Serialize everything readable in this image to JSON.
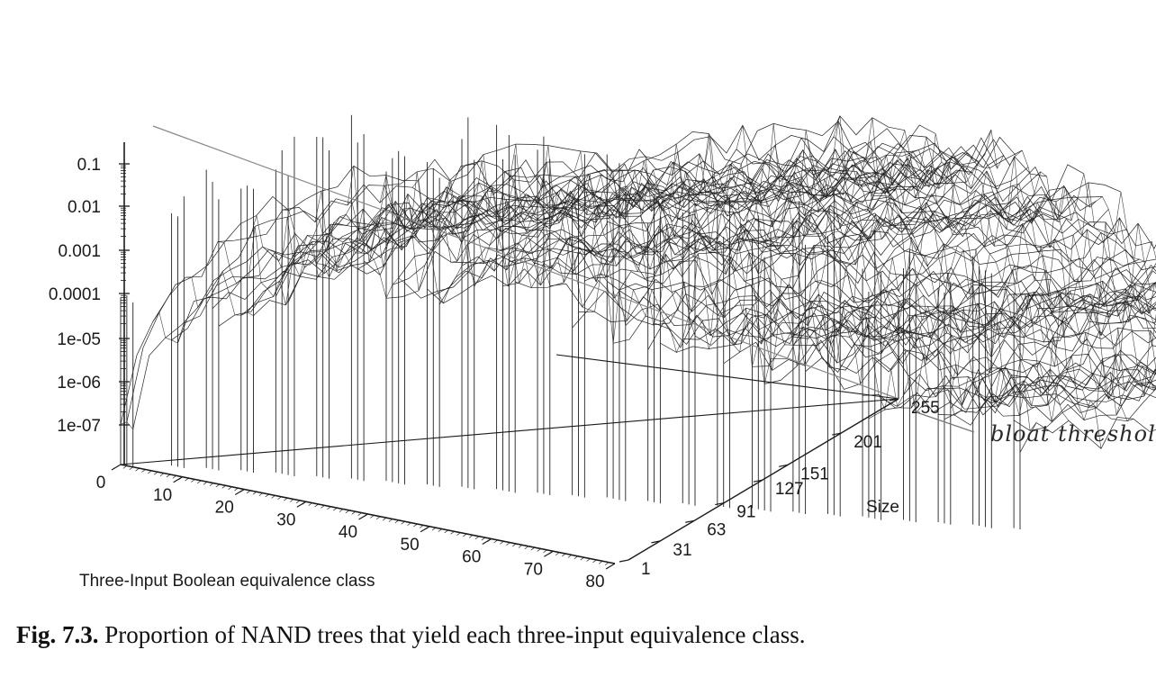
{
  "chart_data": {
    "type": "surface",
    "description_axes": {
      "z_scale": "log",
      "z_ticks": [
        "0.1",
        "0.01",
        "0.001",
        "0.0001",
        "1e-05",
        "1e-06",
        "1e-07"
      ],
      "x_label": "Three-Input Boolean equivalence class",
      "x_ticks": [
        "0",
        "10",
        "20",
        "30",
        "40",
        "50",
        "60",
        "70",
        "80"
      ],
      "x_range": [
        0,
        80
      ],
      "y_label": "Size",
      "y_ticks": [
        "1",
        "31",
        "63",
        "91",
        "127",
        "151",
        "201",
        "255"
      ],
      "y_range": [
        1,
        255
      ]
    },
    "annotation": "bloat threshold",
    "grid": false
  },
  "caption": {
    "label": "Fig. 7.3.",
    "text": "Proportion of NAND trees that yield each three-input equivalence class."
  },
  "colors": {
    "ink": "#1a1a1a",
    "mesh": "#222222",
    "background": "#ffffff"
  }
}
